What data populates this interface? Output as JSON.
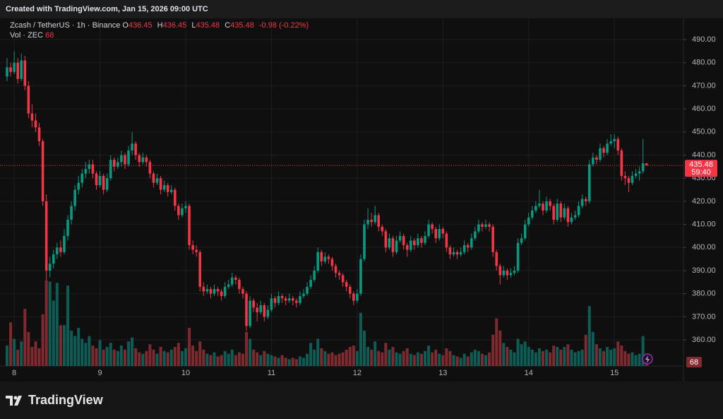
{
  "header": {
    "created": "Created with TradingView.com, Jan 15, 2026 09:00 UTC",
    "brand": "TradingView"
  },
  "chart_data": {
    "type": "candlestick",
    "symbol": "Zcash / TetherUS · 1h · Binance",
    "legend": {
      "open_label": "O",
      "open": 436.45,
      "high_label": "H",
      "high": 436.45,
      "low_label": "L",
      "low": 435.48,
      "close_label": "C",
      "close": 435.48,
      "change": "-0.98 (-0.22%)"
    },
    "volume_label": "Vol · ZEC",
    "countdown": "59:40",
    "up_color": "#089981",
    "down_color": "#f23645",
    "volume_up_color": "#0d5c55",
    "volume_down_color": "#7e2a2f",
    "grid": true,
    "ylim": [
      348.7,
      494.3
    ],
    "yticks": [
      {
        "value": 360,
        "label": "360.00"
      },
      {
        "value": 370,
        "label": "370.00"
      },
      {
        "value": 380,
        "label": "380.00"
      },
      {
        "value": 390,
        "label": "390.00"
      },
      {
        "value": 400,
        "label": "400.00"
      },
      {
        "value": 410,
        "label": "410.00"
      },
      {
        "value": 420,
        "label": "420.00"
      },
      {
        "value": 430,
        "label": "430.00"
      },
      {
        "value": 440,
        "label": "440.00"
      },
      {
        "value": 450,
        "label": "450.00"
      },
      {
        "value": 460,
        "label": "460.00"
      },
      {
        "value": 470,
        "label": "470.00"
      },
      {
        "value": 480,
        "label": "480.00"
      },
      {
        "value": 490,
        "label": "490.00"
      }
    ],
    "volume_ylim": [
      0,
      700
    ],
    "categories": [
      null,
      null,
      "8",
      null,
      null,
      null,
      null,
      null,
      null,
      null,
      null,
      null,
      null,
      null,
      null,
      null,
      null,
      null,
      null,
      null,
      null,
      null,
      null,
      null,
      null,
      null,
      "9",
      null,
      null,
      null,
      null,
      null,
      null,
      null,
      null,
      null,
      null,
      null,
      null,
      null,
      null,
      null,
      null,
      null,
      null,
      null,
      null,
      null,
      null,
      null,
      "10",
      null,
      null,
      null,
      null,
      null,
      null,
      null,
      null,
      null,
      null,
      null,
      null,
      null,
      null,
      null,
      null,
      null,
      null,
      null,
      null,
      null,
      null,
      null,
      "11",
      null,
      null,
      null,
      null,
      null,
      null,
      null,
      null,
      null,
      null,
      null,
      null,
      null,
      null,
      null,
      null,
      null,
      null,
      null,
      null,
      null,
      null,
      null,
      "12",
      null,
      null,
      null,
      null,
      null,
      null,
      null,
      null,
      null,
      null,
      null,
      null,
      null,
      null,
      null,
      null,
      null,
      null,
      null,
      null,
      null,
      null,
      null,
      "13",
      null,
      null,
      null,
      null,
      null,
      null,
      null,
      null,
      null,
      null,
      null,
      null,
      null,
      null,
      null,
      null,
      null,
      null,
      null,
      null,
      null,
      null,
      null,
      "14",
      null,
      null,
      null,
      null,
      null,
      null,
      null,
      null,
      null,
      null,
      null,
      null,
      null,
      null,
      null,
      null,
      null,
      null,
      null,
      null,
      null,
      null,
      null,
      "15",
      null,
      null,
      null,
      null,
      null,
      null,
      null,
      null,
      null
    ],
    "ohlc": [
      [
        474,
        482,
        472,
        478
      ],
      [
        478,
        480,
        474,
        476
      ],
      [
        476,
        485,
        475,
        480
      ],
      [
        480,
        482,
        471,
        473
      ],
      [
        473,
        484,
        472,
        481
      ],
      [
        481,
        483,
        468,
        470
      ],
      [
        470,
        472,
        456,
        458
      ],
      [
        458,
        462,
        452,
        455
      ],
      [
        455,
        458,
        450,
        452
      ],
      [
        452,
        454,
        444,
        446
      ],
      [
        446,
        447,
        418,
        420
      ],
      [
        420,
        423,
        386,
        390
      ],
      [
        390,
        396,
        387,
        393
      ],
      [
        393,
        399,
        391,
        397
      ],
      [
        397,
        402,
        395,
        400
      ],
      [
        400,
        403,
        396,
        398
      ],
      [
        398,
        408,
        397,
        405
      ],
      [
        405,
        414,
        403,
        412
      ],
      [
        412,
        420,
        410,
        418
      ],
      [
        418,
        427,
        416,
        425
      ],
      [
        425,
        431,
        423,
        428
      ],
      [
        428,
        434,
        426,
        432
      ],
      [
        432,
        437,
        430,
        434
      ],
      [
        434,
        438,
        432,
        436
      ],
      [
        436,
        438,
        430,
        432
      ],
      [
        432,
        433,
        425,
        427
      ],
      [
        427,
        433,
        426,
        431
      ],
      [
        431,
        432,
        423,
        425
      ],
      [
        425,
        432,
        424,
        430
      ],
      [
        430,
        440,
        429,
        438
      ],
      [
        438,
        439,
        433,
        435
      ],
      [
        435,
        439,
        434,
        437
      ],
      [
        437,
        442,
        435,
        440
      ],
      [
        440,
        441,
        434,
        436
      ],
      [
        436,
        444,
        435,
        442
      ],
      [
        442,
        450,
        440,
        445
      ],
      [
        445,
        446,
        438,
        440
      ],
      [
        440,
        441,
        435,
        437
      ],
      [
        437,
        441,
        436,
        439
      ],
      [
        439,
        440,
        435,
        437
      ],
      [
        437,
        438,
        430,
        432
      ],
      [
        432,
        433,
        426,
        428
      ],
      [
        428,
        432,
        427,
        430
      ],
      [
        430,
        431,
        423,
        425
      ],
      [
        425,
        429,
        424,
        427
      ],
      [
        427,
        428,
        422,
        424
      ],
      [
        424,
        427,
        423,
        425
      ],
      [
        425,
        426,
        416,
        418
      ],
      [
        418,
        419,
        412,
        414
      ],
      [
        414,
        419,
        413,
        417
      ],
      [
        417,
        420,
        415,
        418
      ],
      [
        418,
        419,
        399,
        401
      ],
      [
        401,
        403,
        397,
        399
      ],
      [
        399,
        401,
        396,
        398
      ],
      [
        398,
        399,
        381,
        383
      ],
      [
        383,
        385,
        379,
        381
      ],
      [
        381,
        384,
        380,
        382
      ],
      [
        382,
        383,
        378,
        380
      ],
      [
        380,
        384,
        379,
        382
      ],
      [
        382,
        383,
        379,
        381
      ],
      [
        381,
        382,
        377,
        379
      ],
      [
        379,
        385,
        378,
        383
      ],
      [
        383,
        386,
        382,
        384
      ],
      [
        384,
        389,
        383,
        387
      ],
      [
        387,
        388,
        384,
        386
      ],
      [
        386,
        387,
        380,
        382
      ],
      [
        382,
        383,
        378,
        380
      ],
      [
        380,
        381,
        364,
        366
      ],
      [
        366,
        379,
        365,
        377
      ],
      [
        377,
        378,
        372,
        374
      ],
      [
        374,
        376,
        368,
        372
      ],
      [
        372,
        377,
        371,
        375
      ],
      [
        375,
        376,
        368,
        370
      ],
      [
        370,
        375,
        369,
        373
      ],
      [
        373,
        380,
        372,
        378
      ],
      [
        378,
        379,
        374,
        376
      ],
      [
        376,
        381,
        375,
        379
      ],
      [
        379,
        380,
        376,
        378
      ],
      [
        378,
        379,
        375,
        377
      ],
      [
        377,
        380,
        376,
        378
      ],
      [
        378,
        379,
        375,
        377
      ],
      [
        377,
        378,
        374,
        376
      ],
      [
        376,
        381,
        375,
        379
      ],
      [
        379,
        382,
        378,
        380
      ],
      [
        380,
        385,
        379,
        383
      ],
      [
        383,
        388,
        382,
        386
      ],
      [
        386,
        392,
        385,
        390
      ],
      [
        390,
        400,
        389,
        398
      ],
      [
        398,
        399,
        392,
        394
      ],
      [
        394,
        398,
        393,
        396
      ],
      [
        396,
        397,
        393,
        395
      ],
      [
        395,
        396,
        390,
        392
      ],
      [
        392,
        393,
        387,
        389
      ],
      [
        389,
        390,
        386,
        388
      ],
      [
        388,
        389,
        383,
        385
      ],
      [
        385,
        386,
        381,
        383
      ],
      [
        383,
        384,
        378,
        380
      ],
      [
        380,
        381,
        375,
        377
      ],
      [
        377,
        382,
        376,
        380
      ],
      [
        380,
        397,
        379,
        395
      ],
      [
        395,
        412,
        394,
        410
      ],
      [
        410,
        417,
        408,
        412
      ],
      [
        412,
        415,
        409,
        411
      ],
      [
        411,
        418,
        410,
        414
      ],
      [
        414,
        415,
        407,
        409
      ],
      [
        409,
        410,
        405,
        407
      ],
      [
        407,
        408,
        398,
        400
      ],
      [
        400,
        406,
        399,
        404
      ],
      [
        404,
        405,
        396,
        398
      ],
      [
        398,
        405,
        397,
        403
      ],
      [
        403,
        407,
        402,
        405
      ],
      [
        405,
        406,
        399,
        401
      ],
      [
        401,
        402,
        396,
        399
      ],
      [
        399,
        405,
        398,
        403
      ],
      [
        403,
        404,
        399,
        401
      ],
      [
        401,
        406,
        400,
        404
      ],
      [
        404,
        405,
        400,
        402
      ],
      [
        402,
        407,
        401,
        405
      ],
      [
        405,
        412,
        404,
        410
      ],
      [
        410,
        411,
        406,
        408
      ],
      [
        408,
        409,
        402,
        404
      ],
      [
        404,
        410,
        403,
        408
      ],
      [
        408,
        409,
        404,
        406
      ],
      [
        406,
        407,
        398,
        400
      ],
      [
        400,
        401,
        395,
        397
      ],
      [
        397,
        400,
        396,
        398
      ],
      [
        398,
        399,
        395,
        397
      ],
      [
        397,
        400,
        396,
        398
      ],
      [
        398,
        403,
        397,
        401
      ],
      [
        401,
        402,
        398,
        400
      ],
      [
        400,
        406,
        399,
        404
      ],
      [
        404,
        409,
        403,
        407
      ],
      [
        407,
        412,
        406,
        410
      ],
      [
        410,
        411,
        407,
        409
      ],
      [
        409,
        412,
        408,
        410
      ],
      [
        410,
        411,
        407,
        409
      ],
      [
        409,
        410,
        396,
        398
      ],
      [
        398,
        399,
        390,
        392
      ],
      [
        392,
        393,
        384,
        388
      ],
      [
        388,
        392,
        387,
        390
      ],
      [
        390,
        391,
        386,
        388
      ],
      [
        388,
        391,
        387,
        389
      ],
      [
        389,
        392,
        388,
        390
      ],
      [
        390,
        404,
        389,
        402
      ],
      [
        402,
        406,
        401,
        404
      ],
      [
        404,
        412,
        403,
        410
      ],
      [
        410,
        415,
        409,
        413
      ],
      [
        413,
        418,
        412,
        416
      ],
      [
        416,
        420,
        415,
        418
      ],
      [
        418,
        425,
        417,
        419
      ],
      [
        419,
        420,
        414,
        416
      ],
      [
        416,
        422,
        415,
        420
      ],
      [
        420,
        421,
        416,
        418
      ],
      [
        418,
        419,
        410,
        412
      ],
      [
        412,
        421,
        411,
        419
      ],
      [
        419,
        420,
        411,
        413
      ],
      [
        413,
        419,
        412,
        417
      ],
      [
        417,
        418,
        409,
        411
      ],
      [
        411,
        415,
        410,
        413
      ],
      [
        413,
        416,
        412,
        414
      ],
      [
        414,
        420,
        413,
        418
      ],
      [
        418,
        423,
        417,
        421
      ],
      [
        421,
        422,
        418,
        420
      ],
      [
        420,
        438,
        419,
        436
      ],
      [
        436,
        441,
        435,
        439
      ],
      [
        439,
        440,
        436,
        438
      ],
      [
        438,
        445,
        437,
        443
      ],
      [
        443,
        444,
        439,
        441
      ],
      [
        441,
        447,
        440,
        445
      ],
      [
        445,
        449,
        444,
        446
      ],
      [
        446,
        449,
        443,
        447
      ],
      [
        447,
        448,
        440,
        442
      ],
      [
        442,
        443,
        429,
        431
      ],
      [
        431,
        433,
        427,
        430
      ],
      [
        430,
        431,
        424,
        428
      ],
      [
        428,
        433,
        427,
        431
      ],
      [
        431,
        434,
        430,
        432
      ],
      [
        432,
        435,
        429,
        433
      ],
      [
        433,
        447,
        432,
        436.46
      ],
      [
        436.45,
        436.45,
        435.48,
        435.48
      ]
    ],
    "volume": [
      150,
      320,
      200,
      120,
      180,
      420,
      250,
      140,
      180,
      130,
      380,
      630,
      620,
      480,
      610,
      300,
      300,
      590,
      260,
      220,
      280,
      200,
      170,
      220,
      150,
      130,
      190,
      120,
      140,
      170,
      120,
      110,
      150,
      120,
      180,
      210,
      130,
      100,
      90,
      110,
      160,
      120,
      90,
      140,
      110,
      100,
      120,
      140,
      170,
      110,
      130,
      280,
      150,
      110,
      180,
      120,
      90,
      80,
      100,
      70,
      80,
      110,
      90,
      120,
      80,
      100,
      90,
      250,
      200,
      120,
      100,
      80,
      110,
      90,
      80,
      70,
      60,
      80,
      60,
      50,
      60,
      50,
      70,
      60,
      90,
      170,
      120,
      200,
      130,
      110,
      90,
      100,
      80,
      90,
      100,
      120,
      140,
      150,
      110,
      390,
      260,
      140,
      120,
      180,
      110,
      100,
      170,
      120,
      140,
      100,
      90,
      110,
      130,
      90,
      80,
      100,
      90,
      110,
      150,
      100,
      120,
      90,
      80,
      130,
      110,
      80,
      70,
      60,
      90,
      70,
      100,
      120,
      110,
      90,
      80,
      100,
      230,
      350,
      260,
      170,
      140,
      120,
      100,
      200,
      160,
      180,
      140,
      120,
      100,
      130,
      110,
      120,
      100,
      150,
      140,
      120,
      140,
      160,
      120,
      100,
      110,
      120,
      230,
      440,
      250,
      160,
      130,
      110,
      140,
      120,
      130,
      180,
      150,
      110,
      90,
      100,
      80,
      90,
      220,
      68
    ]
  }
}
